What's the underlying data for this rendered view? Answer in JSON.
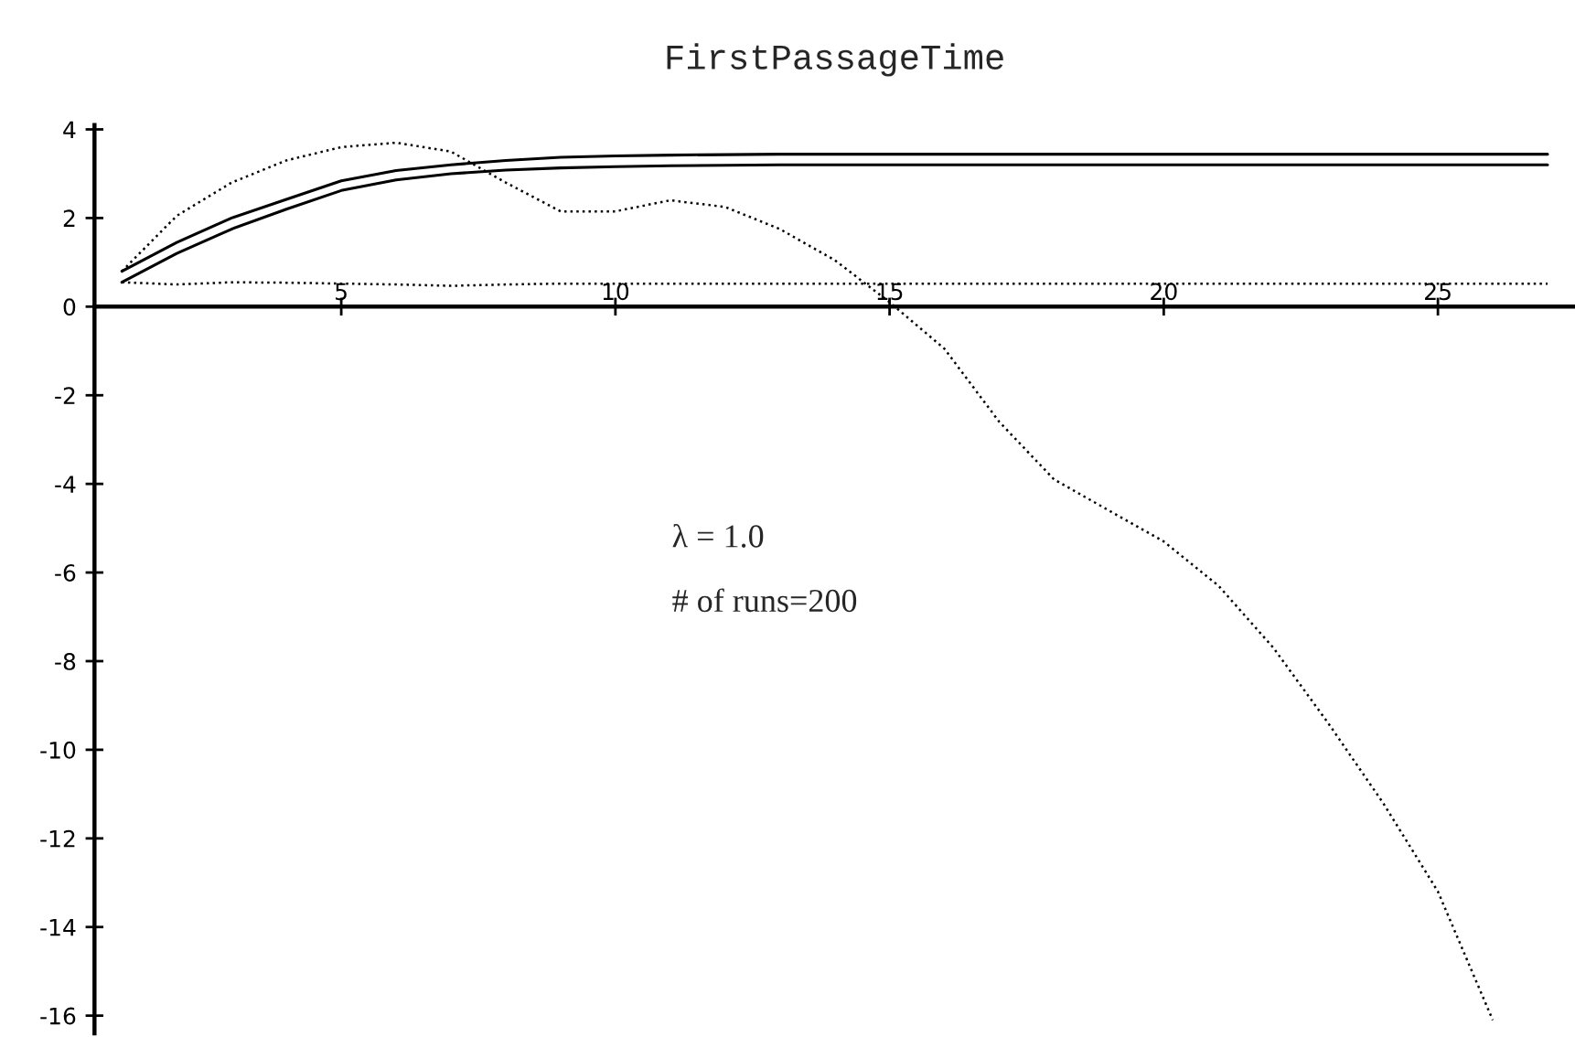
{
  "chart_data": {
    "type": "line",
    "title": "FirstPassageTime",
    "annotations": [
      "λ = 1.0",
      "# of runs=200"
    ],
    "x": [
      1,
      2,
      3,
      4,
      5,
      6,
      7,
      8,
      9,
      10,
      11,
      12,
      13,
      14,
      15,
      16,
      17,
      18,
      19,
      20,
      21,
      22,
      23,
      24,
      25,
      26,
      27
    ],
    "series": [
      {
        "color": "#000000",
        "line_style": "dotted",
        "x": [
          1,
          2,
          3,
          4,
          5,
          6,
          7,
          8,
          9,
          10,
          11,
          12,
          13,
          14,
          15,
          16,
          17,
          18,
          19,
          20,
          21,
          22,
          23,
          24,
          25,
          26
        ],
        "values": [
          0.8,
          2.05,
          2.8,
          3.3,
          3.6,
          3.7,
          3.5,
          2.8,
          2.15,
          2.15,
          2.4,
          2.25,
          1.75,
          1.05,
          0.1,
          -0.95,
          -2.6,
          -3.9,
          -4.6,
          -5.3,
          -6.3,
          -7.7,
          -9.4,
          -11.2,
          -13.2,
          -16.1
        ]
      },
      {
        "color": "#000000",
        "line_style": "solid",
        "values": [
          0.8,
          1.45,
          2.0,
          2.42,
          2.84,
          3.07,
          3.2,
          3.3,
          3.37,
          3.4,
          3.42,
          3.43,
          3.44,
          3.44,
          3.44,
          3.44,
          3.44,
          3.44,
          3.44,
          3.44,
          3.44,
          3.44,
          3.44,
          3.44,
          3.44,
          3.44,
          3.44
        ]
      },
      {
        "color": "#000000",
        "line_style": "solid",
        "values": [
          0.55,
          1.2,
          1.75,
          2.2,
          2.62,
          2.86,
          3.0,
          3.08,
          3.13,
          3.16,
          3.18,
          3.19,
          3.2,
          3.2,
          3.2,
          3.2,
          3.2,
          3.2,
          3.2,
          3.2,
          3.2,
          3.2,
          3.2,
          3.2,
          3.2,
          3.2,
          3.2
        ]
      },
      {
        "color": "#000000",
        "line_style": "dotted",
        "values": [
          0.55,
          0.5,
          0.55,
          0.54,
          0.52,
          0.5,
          0.47,
          0.5,
          0.52,
          0.52,
          0.52,
          0.52,
          0.52,
          0.52,
          0.52,
          0.52,
          0.52,
          0.52,
          0.52,
          0.52,
          0.52,
          0.52,
          0.52,
          0.52,
          0.52,
          0.52,
          0.52
        ]
      }
    ],
    "xlim": [
      0.5,
      27.5
    ],
    "ylim": [
      -16.4,
      4.1
    ],
    "xticks": [
      5,
      10,
      15,
      20,
      25
    ],
    "yticks": [
      4,
      2,
      0,
      -2,
      -4,
      -6,
      -8,
      -10,
      -12,
      -14,
      -16
    ]
  }
}
